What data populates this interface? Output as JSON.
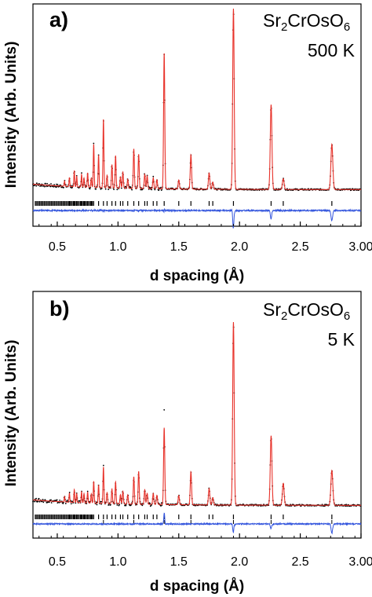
{
  "figure": {
    "panels": [
      {
        "label": "a)",
        "compound": {
          "base": "Sr",
          "sub1": "2",
          "mid": "CrOsO",
          "sub2": "6"
        },
        "temperature": "500 K",
        "ylabel": "Intensity (Arb. Units)",
        "xlabel": "d spacing (Å)"
      },
      {
        "label": "b)",
        "compound": {
          "base": "Sr",
          "sub1": "2",
          "mid": "CrOsO",
          "sub2": "6"
        },
        "temperature": "5 K",
        "ylabel": "Intensity (Arb. Units)",
        "xlabel": "d spacing (Å)"
      }
    ],
    "colors": {
      "observed": "#000000",
      "calculated": "#e8322a",
      "difference": "#3355dd",
      "ticks": "#000000"
    }
  },
  "chart_data": [
    {
      "type": "line",
      "title": "",
      "xlabel": "d spacing (Å)",
      "ylabel": "Intensity (Arb. Units)",
      "xlim": [
        0.3,
        3.0
      ],
      "xticks": [
        "0.5",
        "1.0",
        "1.5",
        "2.0",
        "2.5",
        "3.00"
      ],
      "xtick_values": [
        0.5,
        1.0,
        1.5,
        2.0,
        2.5,
        3.0
      ],
      "grid": false,
      "annotation": "Sr2CrOsO6 500 K",
      "background": 0.02,
      "peaks": [
        {
          "d": 0.56,
          "i": 0.03
        },
        {
          "d": 0.6,
          "i": 0.05
        },
        {
          "d": 0.64,
          "i": 0.09
        },
        {
          "d": 0.66,
          "i": 0.06
        },
        {
          "d": 0.7,
          "i": 0.07
        },
        {
          "d": 0.72,
          "i": 0.05
        },
        {
          "d": 0.75,
          "i": 0.08
        },
        {
          "d": 0.78,
          "i": 0.05
        },
        {
          "d": 0.8,
          "i": 0.24
        },
        {
          "d": 0.84,
          "i": 0.18
        },
        {
          "d": 0.88,
          "i": 0.38
        },
        {
          "d": 0.91,
          "i": 0.07
        },
        {
          "d": 0.95,
          "i": 0.13
        },
        {
          "d": 0.98,
          "i": 0.18
        },
        {
          "d": 1.02,
          "i": 0.06
        },
        {
          "d": 1.04,
          "i": 0.09
        },
        {
          "d": 1.08,
          "i": 0.05
        },
        {
          "d": 1.13,
          "i": 0.22
        },
        {
          "d": 1.17,
          "i": 0.19
        },
        {
          "d": 1.22,
          "i": 0.08
        },
        {
          "d": 1.24,
          "i": 0.07
        },
        {
          "d": 1.29,
          "i": 0.06
        },
        {
          "d": 1.32,
          "i": 0.05
        },
        {
          "d": 1.38,
          "i": 0.75
        },
        {
          "d": 1.5,
          "i": 0.05
        },
        {
          "d": 1.6,
          "i": 0.19
        },
        {
          "d": 1.75,
          "i": 0.09
        },
        {
          "d": 1.78,
          "i": 0.04
        },
        {
          "d": 1.95,
          "i": 1.0
        },
        {
          "d": 2.26,
          "i": 0.47
        },
        {
          "d": 2.36,
          "i": 0.06
        },
        {
          "d": 2.76,
          "i": 0.25
        }
      ],
      "reflection_ticks": [
        0.56,
        0.6,
        0.64,
        0.66,
        0.7,
        0.72,
        0.75,
        0.78,
        0.8,
        0.84,
        0.88,
        0.91,
        0.95,
        0.98,
        1.02,
        1.04,
        1.08,
        1.13,
        1.17,
        1.22,
        1.24,
        1.29,
        1.32,
        1.38,
        1.5,
        1.6,
        1.75,
        1.78,
        1.95,
        2.26,
        2.36,
        2.76
      ],
      "difference_dips": [
        {
          "d": 1.95,
          "i": -0.1
        },
        {
          "d": 2.26,
          "i": -0.05
        },
        {
          "d": 2.76,
          "i": -0.06
        }
      ]
    },
    {
      "type": "line",
      "title": "",
      "xlabel": "d spacing (Å)",
      "ylabel": "Intensity (Arb. Units)",
      "xlim": [
        0.3,
        3.0
      ],
      "xticks": [
        "0.5",
        "1.0",
        "1.5",
        "2.0",
        "2.5",
        "3.00"
      ],
      "xtick_values": [
        0.5,
        1.0,
        1.5,
        2.0,
        2.5,
        3.0
      ],
      "grid": false,
      "annotation": "Sr2CrOsO6 5 K",
      "background": 0.02,
      "peaks": [
        {
          "d": 0.56,
          "i": 0.03
        },
        {
          "d": 0.6,
          "i": 0.05
        },
        {
          "d": 0.64,
          "i": 0.07
        },
        {
          "d": 0.66,
          "i": 0.05
        },
        {
          "d": 0.7,
          "i": 0.06
        },
        {
          "d": 0.72,
          "i": 0.05
        },
        {
          "d": 0.75,
          "i": 0.06
        },
        {
          "d": 0.78,
          "i": 0.05
        },
        {
          "d": 0.8,
          "i": 0.12
        },
        {
          "d": 0.84,
          "i": 0.1
        },
        {
          "d": 0.88,
          "i": 0.2
        },
        {
          "d": 0.91,
          "i": 0.06
        },
        {
          "d": 0.95,
          "i": 0.08
        },
        {
          "d": 0.98,
          "i": 0.12
        },
        {
          "d": 1.02,
          "i": 0.05
        },
        {
          "d": 1.04,
          "i": 0.07
        },
        {
          "d": 1.08,
          "i": 0.05
        },
        {
          "d": 1.13,
          "i": 0.15
        },
        {
          "d": 1.17,
          "i": 0.18
        },
        {
          "d": 1.22,
          "i": 0.08
        },
        {
          "d": 1.24,
          "i": 0.06
        },
        {
          "d": 1.29,
          "i": 0.06
        },
        {
          "d": 1.32,
          "i": 0.05
        },
        {
          "d": 1.38,
          "i": 0.42
        },
        {
          "d": 1.5,
          "i": 0.05
        },
        {
          "d": 1.6,
          "i": 0.18
        },
        {
          "d": 1.75,
          "i": 0.09
        },
        {
          "d": 1.78,
          "i": 0.04
        },
        {
          "d": 1.95,
          "i": 1.0
        },
        {
          "d": 2.26,
          "i": 0.38
        },
        {
          "d": 2.36,
          "i": 0.12
        },
        {
          "d": 2.76,
          "i": 0.19
        }
      ],
      "observed_extra_peaks": [
        {
          "d": 1.38,
          "i": 0.52
        }
      ],
      "reflection_ticks": [
        0.56,
        0.6,
        0.64,
        0.66,
        0.7,
        0.72,
        0.75,
        0.78,
        0.8,
        0.84,
        0.88,
        0.91,
        0.95,
        0.98,
        1.02,
        1.04,
        1.08,
        1.13,
        1.17,
        1.22,
        1.24,
        1.29,
        1.32,
        1.38,
        1.5,
        1.6,
        1.75,
        1.78,
        1.95,
        2.26,
        2.36,
        2.76
      ],
      "magnetic_ticks": [
        0.88,
        1.13,
        1.38,
        1.6,
        1.95,
        2.26,
        2.76
      ],
      "difference_dips": [
        {
          "d": 1.38,
          "i": 0.07
        },
        {
          "d": 1.95,
          "i": -0.05
        },
        {
          "d": 2.26,
          "i": -0.03
        },
        {
          "d": 2.76,
          "i": -0.06
        }
      ]
    }
  ]
}
